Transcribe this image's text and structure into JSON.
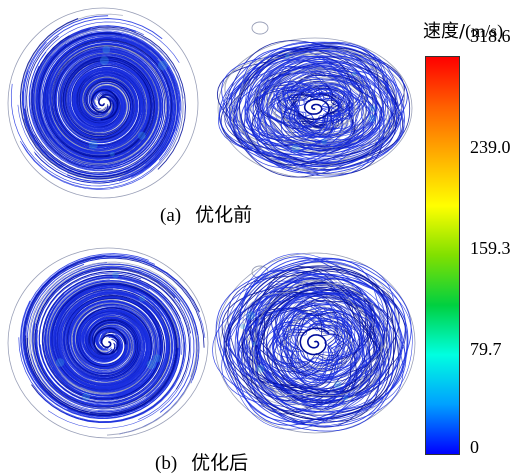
{
  "panels": [
    {
      "caption_label": "(a)",
      "caption_text": "优化前"
    },
    {
      "caption_label": "(b)",
      "caption_text": "优化后"
    }
  ],
  "legend": {
    "title_cn": "速度/",
    "title_unit": "(m/s)",
    "ticks": [
      "318.6",
      "239.0",
      "159.3",
      "79.7",
      "0"
    ],
    "colors": [
      "#0000ff",
      "#00a0ff",
      "#00ffe0",
      "#00d040",
      "#80e000",
      "#ffff00",
      "#ffb000",
      "#ff6000",
      "#ff0000"
    ]
  },
  "streamline_colors": {
    "main": "#1a2fe0",
    "dark": "#000d9a",
    "light": "#9aa0b8",
    "accent": "#3aa0e0"
  }
}
